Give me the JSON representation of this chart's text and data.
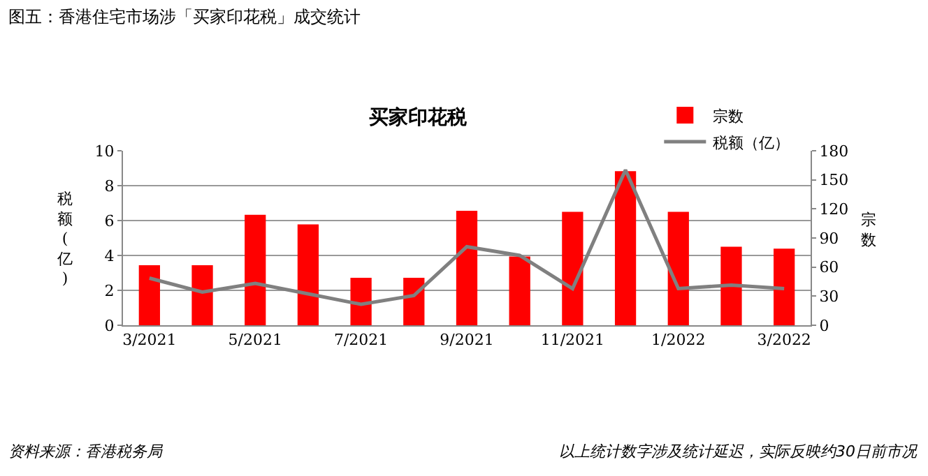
{
  "chart_data": {
    "type": "bar",
    "title": "图五：香港住宅市场涉「买家印花税」成交统计",
    "subtitle": "买家印花税",
    "ylabel": "税额(亿)",
    "y2label": "宗数",
    "categories": [
      "3/2021",
      null,
      "5/2021",
      null,
      "7/2021",
      null,
      "9/2021",
      null,
      "11/2021",
      null,
      "1/2022",
      null,
      "3/2022"
    ],
    "series": [
      {
        "name": "宗数",
        "axis": "y2",
        "color": "#ff0000",
        "values": [
          62,
          62,
          114,
          104,
          49,
          49,
          118,
          71,
          117,
          159,
          117,
          81,
          79
        ]
      },
      {
        "name": "税额（亿）",
        "type": "line",
        "axis": "y",
        "color": "#808080",
        "values": [
          2.7,
          1.9,
          2.4,
          1.8,
          1.2,
          1.7,
          4.5,
          4.0,
          2.1,
          8.9,
          2.1,
          2.3,
          2.1
        ]
      }
    ],
    "ylim": [
      0,
      10
    ],
    "yticks": [
      0,
      2,
      4,
      6,
      8,
      10
    ],
    "y2lim": [
      0,
      180
    ],
    "y2ticks": [
      0,
      30,
      60,
      90,
      120,
      150,
      180
    ],
    "grid": "y",
    "legend": "top right",
    "annotations": [
      "资料来源：香港税务局",
      "以上统计数字涉及统计延迟，实际反映约30日前市况"
    ]
  }
}
